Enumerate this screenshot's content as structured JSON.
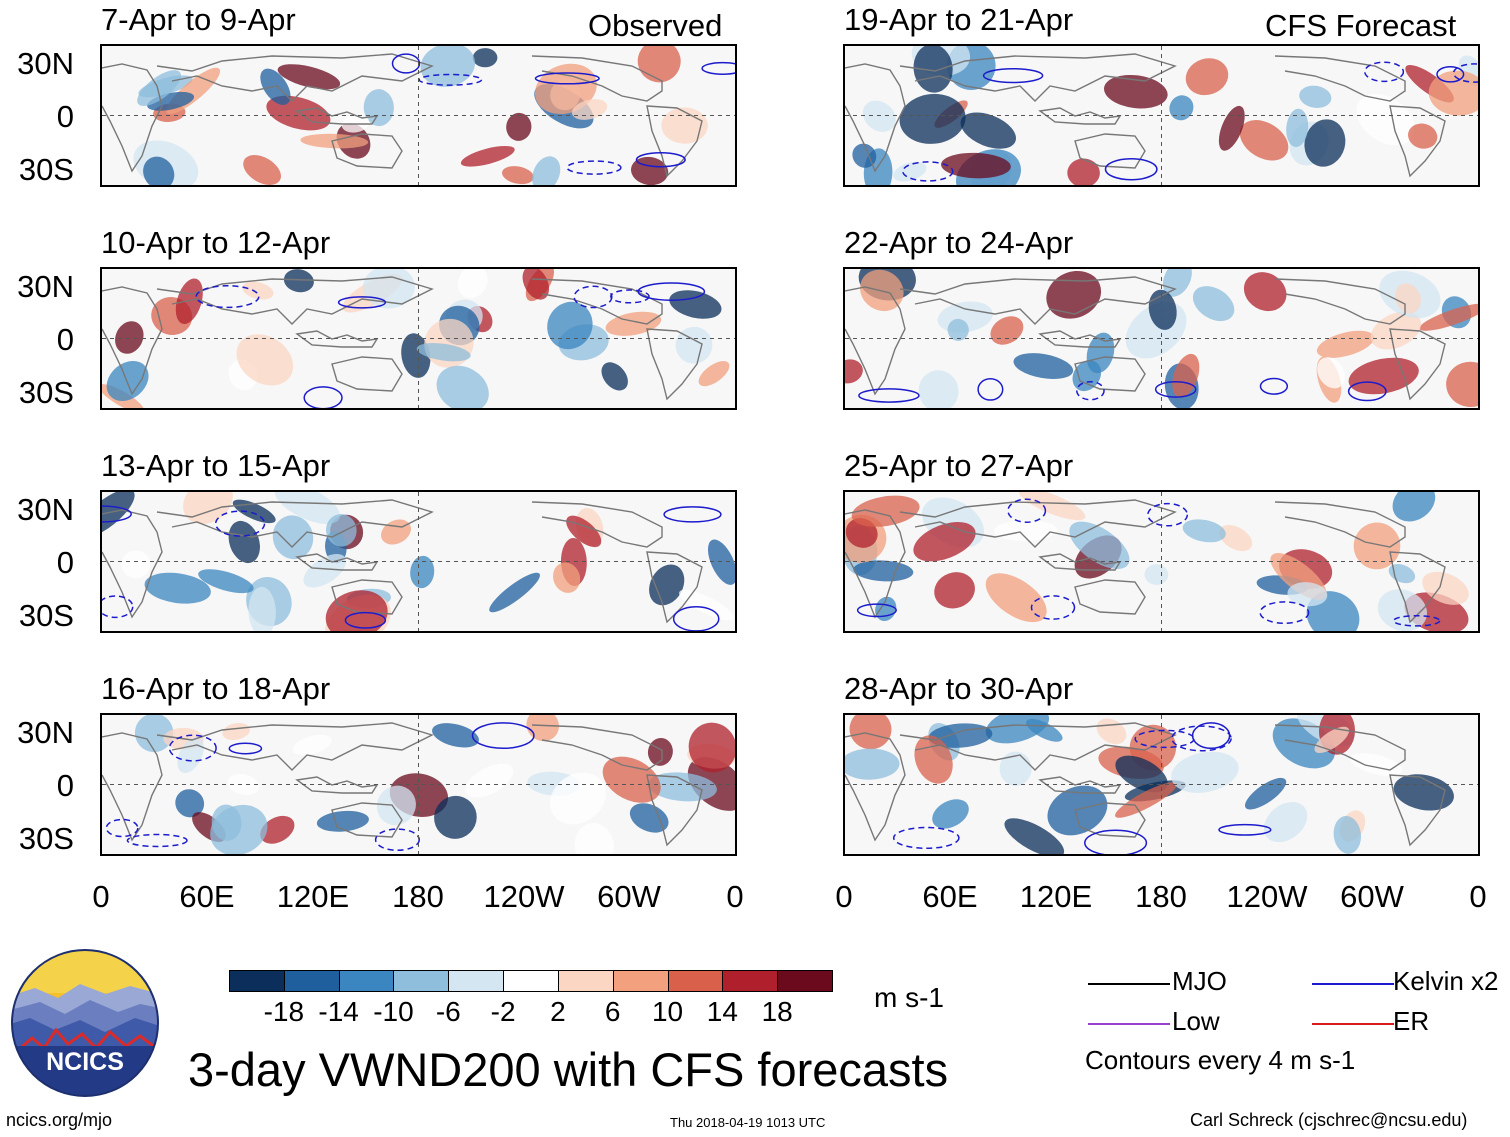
{
  "figure": {
    "title": "3-day VWND200 with CFS forecasts",
    "observed_label": "Observed",
    "forecast_label": "CFS Forecast",
    "footer_left": "ncics.org/mjo",
    "footer_center": "Thu 2018-04-19 1013 UTC",
    "footer_right": "Carl Schreck (cjschrec@ncsu.edu)",
    "logo_text": "NCICS"
  },
  "panels": {
    "observed": [
      {
        "label": "7-Apr to 9-Apr"
      },
      {
        "label": "10-Apr to 12-Apr"
      },
      {
        "label": "13-Apr to 15-Apr"
      },
      {
        "label": "16-Apr to 18-Apr"
      }
    ],
    "forecast": [
      {
        "label": "19-Apr to 21-Apr"
      },
      {
        "label": "22-Apr to 24-Apr"
      },
      {
        "label": "25-Apr to 27-Apr"
      },
      {
        "label": "28-Apr to 30-Apr"
      }
    ]
  },
  "axes": {
    "lat_labels": [
      "30N",
      "0",
      "30S"
    ],
    "lon_labels": [
      "0",
      "60E",
      "120E",
      "180",
      "120W",
      "60W",
      "0"
    ],
    "lon_values": [
      0,
      60,
      120,
      180,
      240,
      300,
      360
    ],
    "lat_range": [
      -40,
      40
    ]
  },
  "colorbar": {
    "units": "m s-1",
    "labels": [
      "-18",
      "-14",
      "-10",
      "-6",
      "-2",
      "2",
      "6",
      "10",
      "14",
      "18"
    ],
    "colors": [
      "#0b2e5a",
      "#1f5f9e",
      "#3b86c0",
      "#8ebedc",
      "#d3e6f2",
      "#ffffff",
      "#fbd6c3",
      "#f2a07e",
      "#d9614c",
      "#b0202c",
      "#6a0a1c"
    ]
  },
  "legend": {
    "mjo": {
      "label": "MJO",
      "color": "#000000"
    },
    "kelvin": {
      "label": "Kelvin x2",
      "color": "#1c1ccc"
    },
    "low": {
      "label": "Low",
      "color": "#9a3fd0"
    },
    "er": {
      "label": "ER",
      "color": "#d81a1a"
    },
    "note": "Contours every 4 m s-1"
  }
}
